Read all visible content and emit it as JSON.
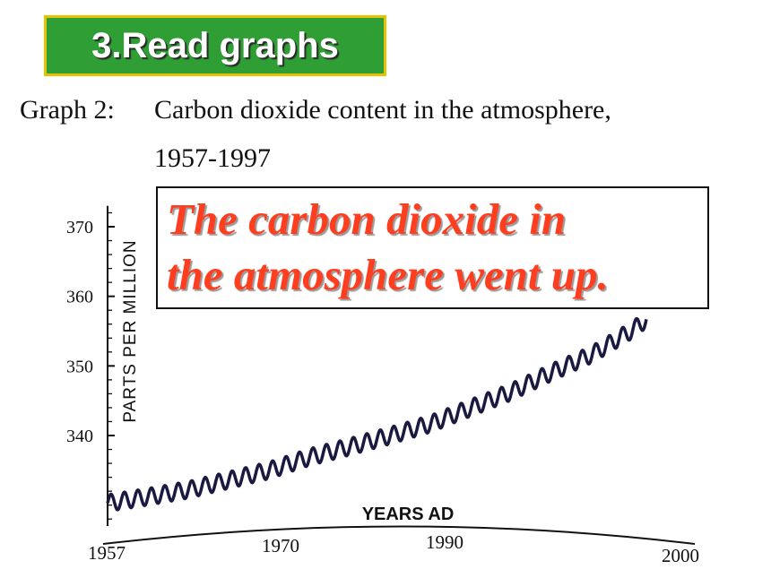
{
  "slide": {
    "heading": "3.Read graphs",
    "caption_prefix": "Graph 2:",
    "caption_line1": "Carbon dioxide content in the atmosphere,",
    "caption_line2": "1957-1997",
    "callout_line1": "The carbon dioxide in",
    "callout_line2": "the atmosphere went up.",
    "colors": {
      "badge_bg": "#2f9e34",
      "badge_border": "#e6c200",
      "callout_text": "#ff3d1f",
      "line": "#1a1a40"
    }
  },
  "chart_data": {
    "type": "line",
    "title": "Carbon dioxide content in the atmosphere, 1957-1997",
    "xlabel": "YEARS AD",
    "ylabel": "PARTS PER MILLION",
    "x_ticks": [
      1957,
      1970,
      1990,
      2000
    ],
    "y_ticks": [
      340,
      350,
      360,
      370
    ],
    "ylim": [
      327,
      373
    ],
    "xlim": [
      1957,
      2000
    ],
    "seasonal_amplitude": 1.2,
    "series": [
      {
        "x": [
          1957,
          1960,
          1963,
          1966,
          1969,
          1972,
          1975,
          1978,
          1981,
          1984,
          1987,
          1990,
          1993,
          1996,
          1997
        ],
        "values": [
          330.3,
          331.2,
          332.2,
          333.6,
          335.0,
          336.9,
          338.4,
          340.0,
          341.7,
          344.0,
          346.3,
          349.1,
          351.7,
          355.2,
          356.7
        ]
      }
    ]
  }
}
